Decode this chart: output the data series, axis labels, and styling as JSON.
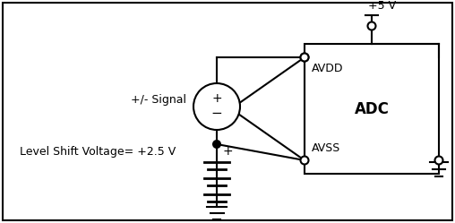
{
  "bg_color": "#ffffff",
  "border_color": "#000000",
  "line_color": "#000000",
  "text_color": "#000000",
  "fig_width": 5.08,
  "fig_height": 2.49,
  "dpi": 100,
  "label_signal": "+/- Signal",
  "label_level_shift": "Level Shift Voltage= +2.5 V",
  "label_5v": "+5 V",
  "label_avdd": "AVDD",
  "label_adc": "ADC",
  "label_avss": "AVSS",
  "label_plus": "+"
}
